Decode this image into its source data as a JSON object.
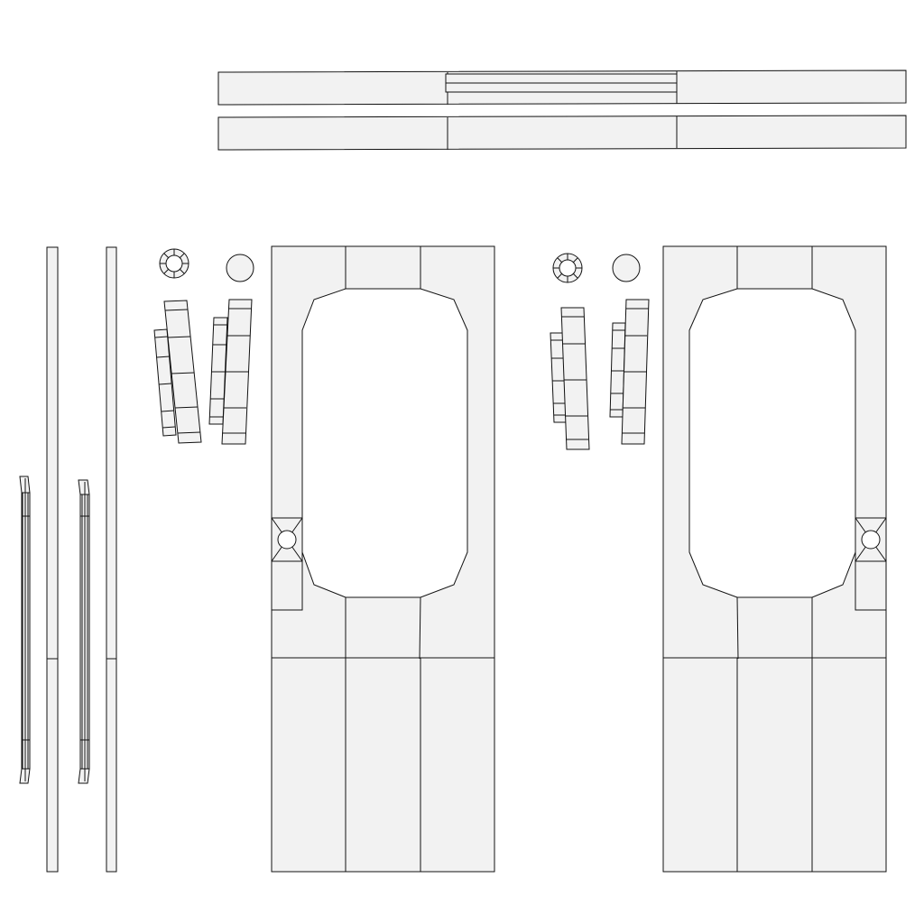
{
  "canvas": {
    "background": "#ffffff",
    "panel_fill": "#f2f2f2",
    "stroke": "#111111"
  },
  "diagram": {
    "kind": "UV layout wireframe",
    "text_labels": []
  }
}
